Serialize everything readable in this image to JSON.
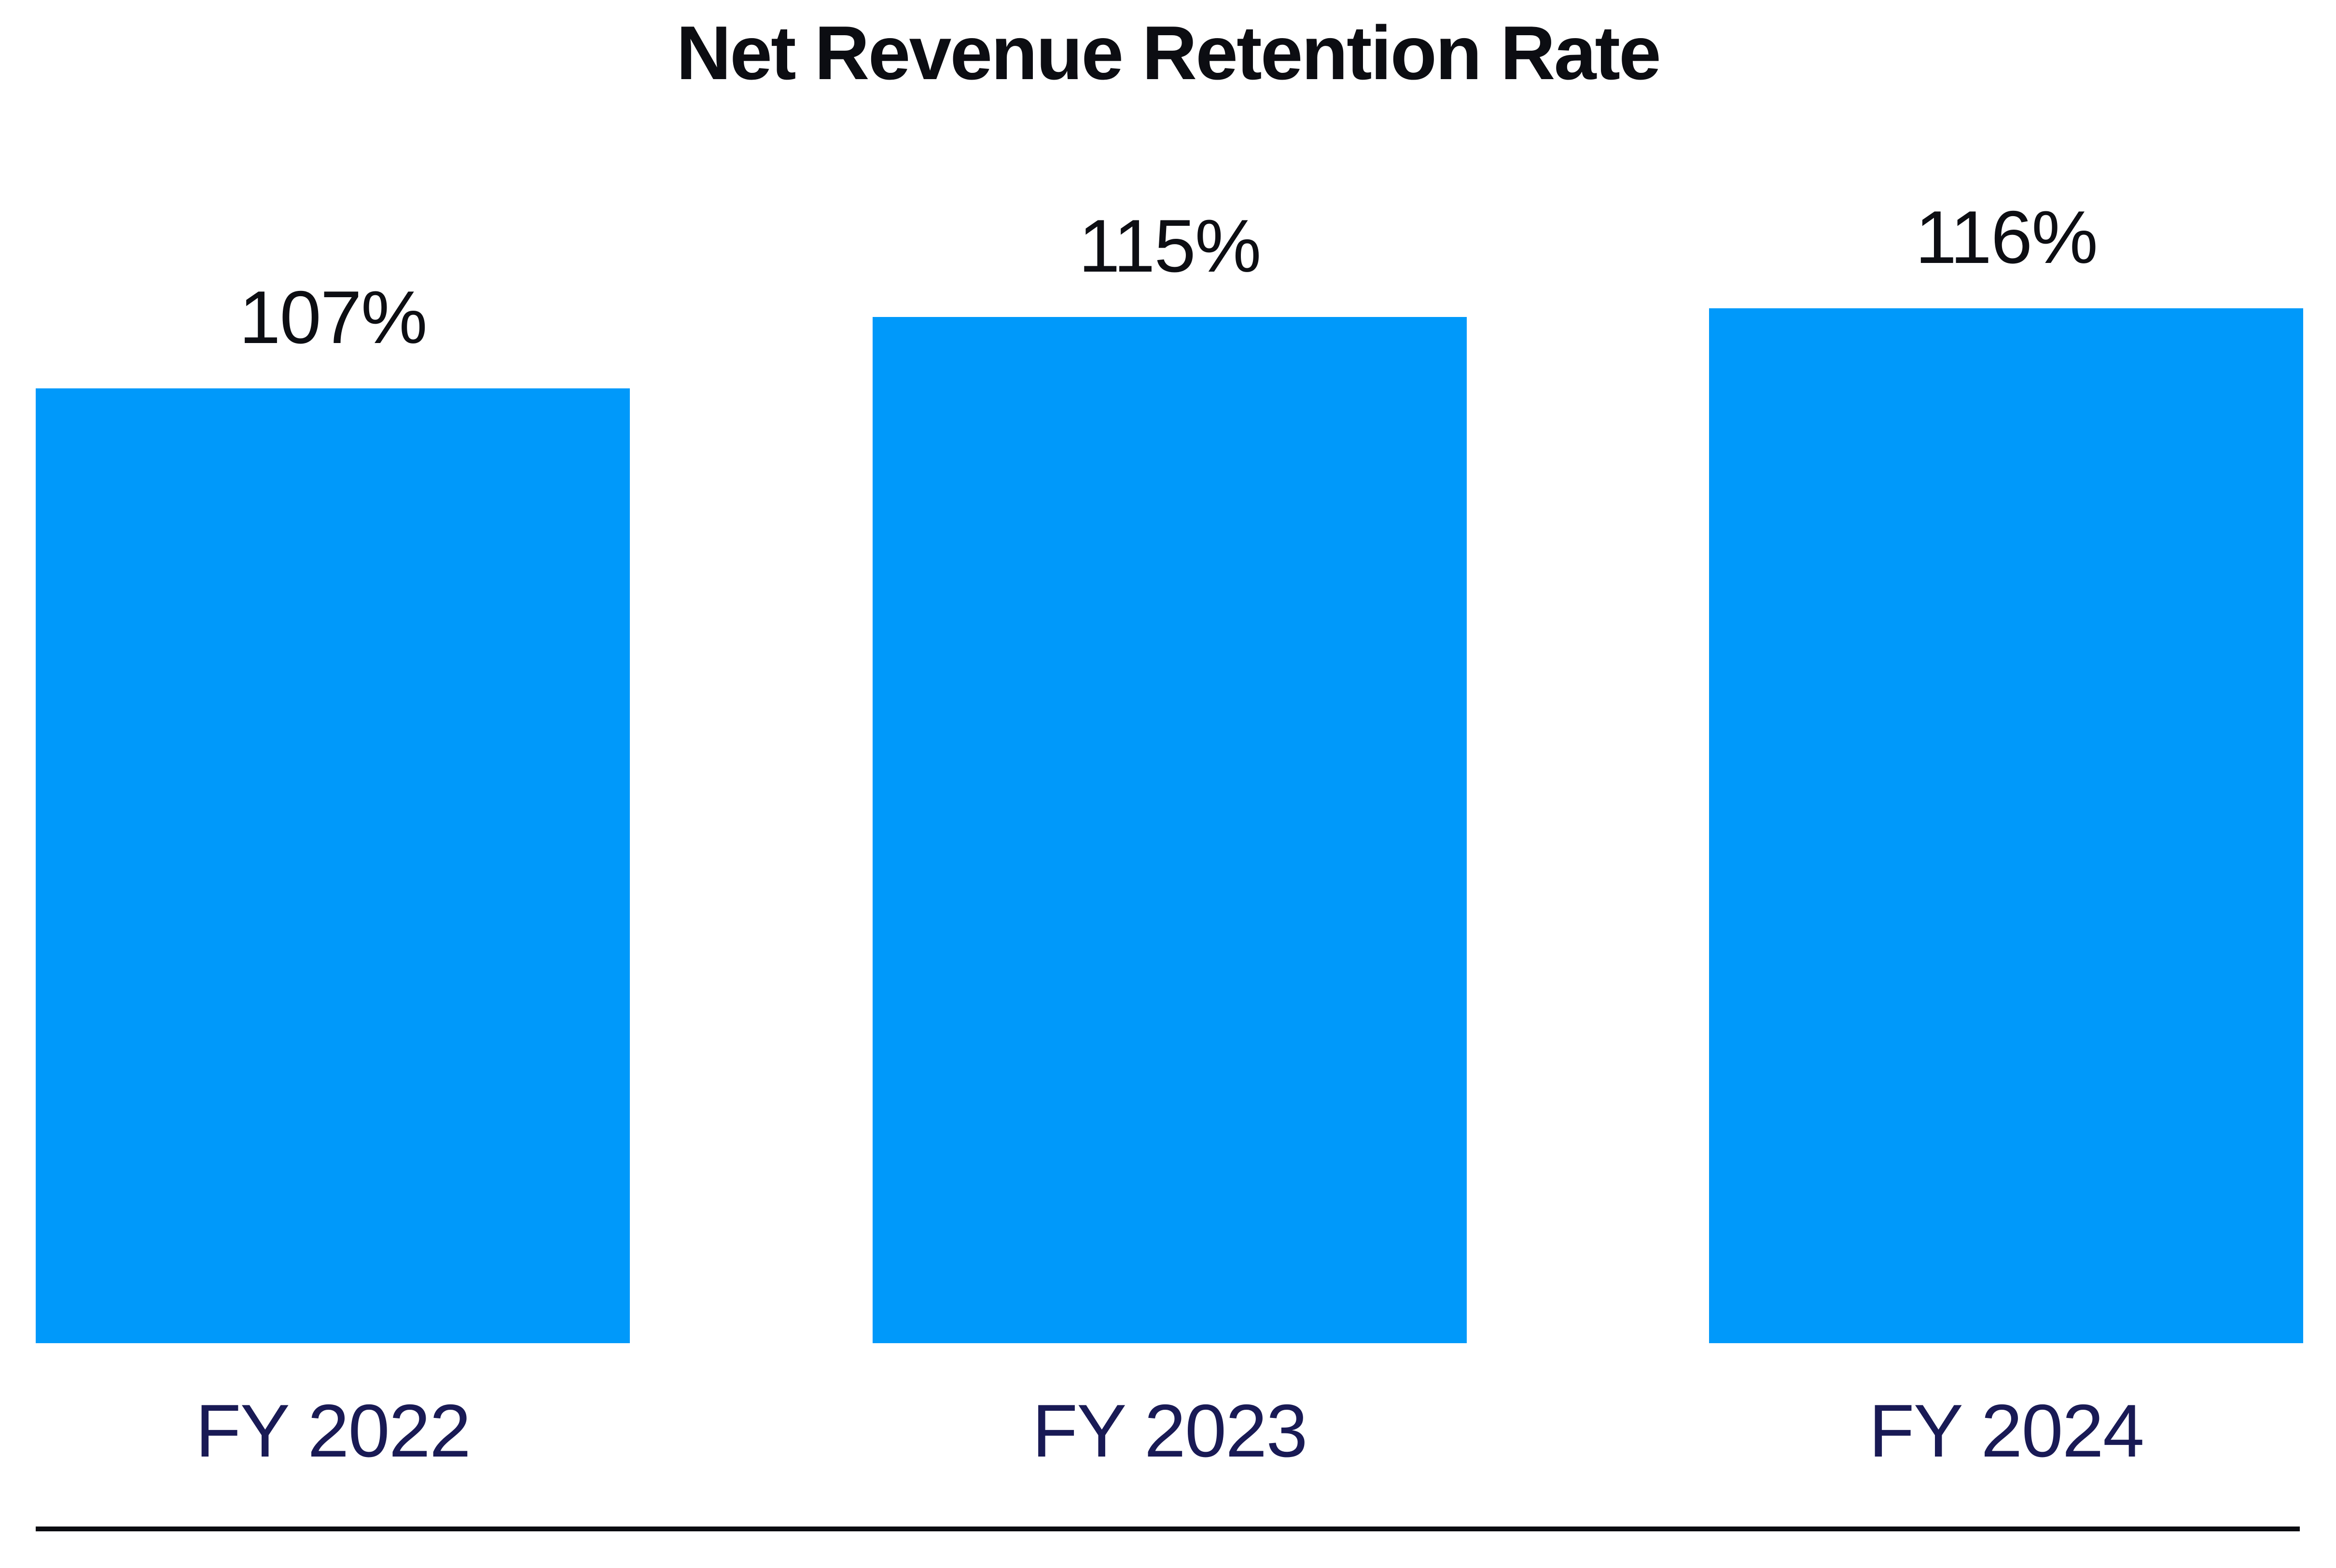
{
  "chart_data": {
    "type": "bar",
    "title": "Net Revenue Retention Rate",
    "categories": [
      "FY 2022",
      "FY 2023",
      "FY 2024"
    ],
    "values": [
      107,
      115,
      116
    ],
    "data_labels": [
      "107%",
      "115%",
      "116%"
    ],
    "unit": "%",
    "ylim": [
      0,
      116
    ],
    "xlabel": "",
    "ylabel": "",
    "grid": false,
    "legend": false,
    "axes_visible": false,
    "colors": {
      "bar": "#0099FA",
      "title": "#0C0D12",
      "value_label": "#0D0E13",
      "category_label": "#191A55",
      "baseline_rule": "#0A0B10",
      "background": "#FFFFFF"
    }
  }
}
